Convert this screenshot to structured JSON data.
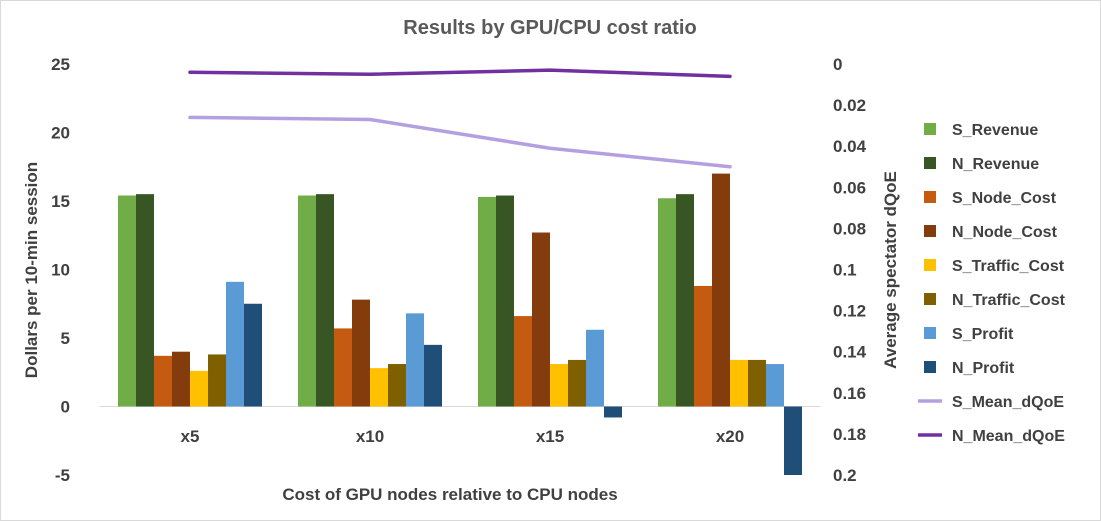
{
  "chart_data": {
    "type": "bar",
    "title": "Results by GPU/CPU cost ratio",
    "xlabel": "Cost of GPU nodes relative to CPU nodes",
    "ylabel": "Dollars per 10-min session",
    "y2label": "Average spectator dQoE",
    "categories": [
      "x5",
      "x10",
      "x15",
      "x20"
    ],
    "ylim": [
      -5,
      25
    ],
    "yticks": [
      -5,
      0,
      5,
      10,
      15,
      20,
      25
    ],
    "y2lim": [
      0,
      0.2
    ],
    "y2ticks": [
      "0",
      "0.02",
      "0.04",
      "0.06",
      "0.08",
      "0.1",
      "0.12",
      "0.14",
      "0.16",
      "0.18",
      "0.2"
    ],
    "y2_reversed": true,
    "series": [
      {
        "name": "S_Revenue",
        "type": "bar",
        "axis": "left",
        "color": "#70ad47",
        "values": [
          15.4,
          15.4,
          15.3,
          15.2
        ]
      },
      {
        "name": "N_Revenue",
        "type": "bar",
        "axis": "left",
        "color": "#375623",
        "values": [
          15.5,
          15.5,
          15.4,
          15.5
        ]
      },
      {
        "name": "S_Node_Cost",
        "type": "bar",
        "axis": "left",
        "color": "#c55a11",
        "values": [
          3.7,
          5.7,
          6.6,
          8.8
        ]
      },
      {
        "name": "N_Node_Cost",
        "type": "bar",
        "axis": "left",
        "color": "#843c0c",
        "values": [
          4.0,
          7.8,
          12.7,
          17.0
        ]
      },
      {
        "name": "S_Traffic_Cost",
        "type": "bar",
        "axis": "left",
        "color": "#ffc000",
        "values": [
          2.6,
          2.8,
          3.1,
          3.4
        ]
      },
      {
        "name": "N_Traffic_Cost",
        "type": "bar",
        "axis": "left",
        "color": "#7f6000",
        "values": [
          3.8,
          3.1,
          3.4,
          3.4
        ]
      },
      {
        "name": "S_Profit",
        "type": "bar",
        "axis": "left",
        "color": "#5b9bd5",
        "values": [
          9.1,
          6.8,
          5.6,
          3.1
        ]
      },
      {
        "name": "N_Profit",
        "type": "bar",
        "axis": "left",
        "color": "#1f4e79",
        "values": [
          7.5,
          4.5,
          -0.8,
          -5.0
        ]
      },
      {
        "name": "S_Mean_dQoE",
        "type": "line",
        "axis": "right",
        "color": "#b4a0e0",
        "values": [
          0.026,
          0.027,
          0.041,
          0.05
        ]
      },
      {
        "name": "N_Mean_dQoE",
        "type": "line",
        "axis": "right",
        "color": "#7030a0",
        "values": [
          0.004,
          0.005,
          0.003,
          0.006
        ]
      }
    ]
  }
}
